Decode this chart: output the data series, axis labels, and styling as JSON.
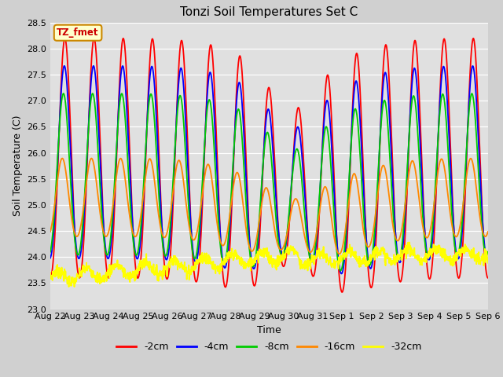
{
  "title": "Tonzi Soil Temperatures Set C",
  "xlabel": "Time",
  "ylabel": "Soil Temperature (C)",
  "ylim": [
    23.0,
    28.5
  ],
  "yticks": [
    23.0,
    23.5,
    24.0,
    24.5,
    25.0,
    25.5,
    26.0,
    26.5,
    27.0,
    27.5,
    28.0,
    28.5
  ],
  "series": [
    {
      "label": "-2cm",
      "color": "#ff0000"
    },
    {
      "label": "-4cm",
      "color": "#0000ff"
    },
    {
      "label": "-8cm",
      "color": "#00cc00"
    },
    {
      "label": "-16cm",
      "color": "#ff8800"
    },
    {
      "label": "-32cm",
      "color": "#ffff00"
    }
  ],
  "annotation_label": "TZ_fmet",
  "annotation_color": "#cc0000",
  "annotation_bg": "#ffffcc",
  "fig_facecolor": "#d0d0d0",
  "plot_facecolor": "#e0e0e0",
  "title_fontsize": 11,
  "label_fontsize": 9,
  "tick_fontsize": 8,
  "legend_fontsize": 9,
  "n_days": 15,
  "samples_per_day": 96,
  "day_labels": [
    "Aug 22",
    "Aug 23",
    "Aug 24",
    "Aug 25",
    "Aug 26",
    "Aug 27",
    "Aug 28",
    "Aug 29",
    "Aug 30",
    "Aug 31",
    "Sep 1",
    "Sep 2",
    "Sep 3",
    "Sep 4",
    "Sep 5",
    "Sep 6"
  ]
}
